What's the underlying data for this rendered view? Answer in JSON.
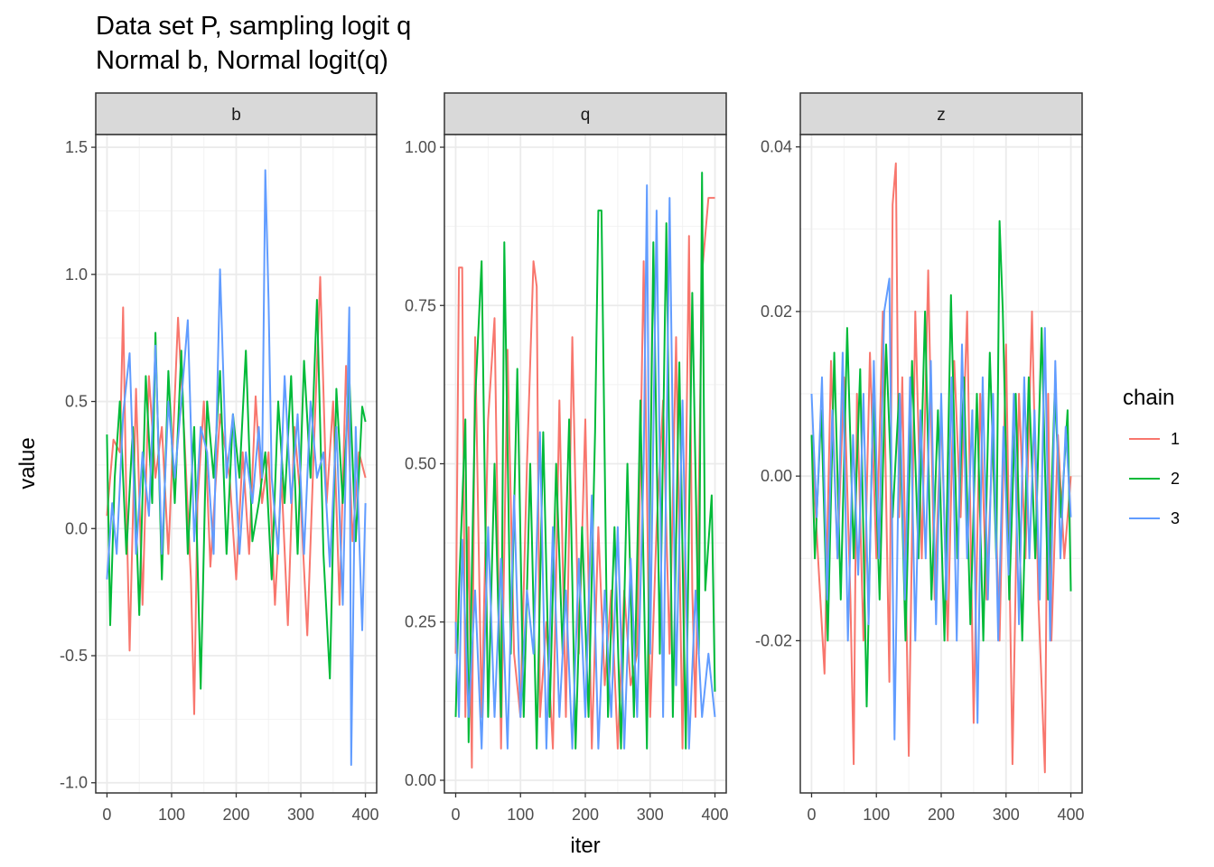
{
  "title": {
    "line1": "Data set P, sampling logit q",
    "line2": "Normal b, Normal logit(q)"
  },
  "chart_data": {
    "type": "line",
    "xlabel": "iter",
    "ylabel": "value",
    "xlim": [
      0,
      400
    ],
    "xticks": [
      0,
      100,
      200,
      300,
      400
    ],
    "grid": true,
    "legend": {
      "title": "chain",
      "placement": "right",
      "entries": [
        {
          "name": "1",
          "color": "#F8766D"
        },
        {
          "name": "2",
          "color": "#00BA38"
        },
        {
          "name": "3",
          "color": "#619CFF"
        }
      ]
    },
    "panels": [
      {
        "strip": "b",
        "ylim": [
          -1.04,
          1.55
        ],
        "yticks": [
          -1.0,
          -0.5,
          0.0,
          0.5,
          1.0,
          1.5
        ],
        "yticklabels": [
          "-1.0",
          "-0.5",
          "0.0",
          "0.5",
          "1.0",
          "1.5"
        ],
        "series": [
          {
            "name": "1",
            "x": [
              0,
              10,
              20,
              25,
              30,
              35,
              45,
              55,
              65,
              75,
              85,
              95,
              110,
              120,
              130,
              135,
              140,
              150,
              160,
              175,
              190,
              200,
              210,
              220,
              230,
              240,
              250,
              260,
              270,
              280,
              290,
              300,
              310,
              320,
              330,
              340,
              350,
              360,
              370,
              380,
              390,
              400
            ],
            "values": [
              0.05,
              0.35,
              0.3,
              0.87,
              0.1,
              -0.48,
              0.55,
              -0.3,
              0.6,
              0.2,
              0.4,
              -0.1,
              0.83,
              0.35,
              -0.2,
              -0.73,
              0.1,
              0.5,
              -0.15,
              0.45,
              0.2,
              -0.2,
              0.3,
              -0.1,
              0.52,
              0.1,
              0.3,
              -0.3,
              0.2,
              -0.38,
              0.4,
              0.1,
              -0.42,
              0.3,
              0.99,
              0.1,
              0.5,
              -0.3,
              0.64,
              -0.05,
              0.3,
              0.2
            ]
          },
          {
            "name": "2",
            "x": [
              0,
              5,
              12,
              20,
              30,
              40,
              50,
              60,
              70,
              75,
              85,
              95,
              105,
              115,
              125,
              135,
              145,
              155,
              165,
              175,
              185,
              195,
              205,
              215,
              225,
              235,
              245,
              255,
              265,
              275,
              285,
              295,
              305,
              315,
              325,
              335,
              345,
              355,
              365,
              375,
              385,
              395,
              400
            ],
            "values": [
              0.37,
              -0.38,
              0.2,
              0.5,
              -0.1,
              0.4,
              -0.34,
              0.6,
              0.1,
              0.77,
              -0.2,
              0.62,
              0.1,
              0.7,
              -0.1,
              0.4,
              -0.63,
              0.5,
              0.2,
              0.62,
              -0.1,
              0.45,
              0.2,
              0.7,
              -0.05,
              0.1,
              0.3,
              -0.2,
              0.5,
              0.1,
              0.6,
              -0.1,
              0.66,
              0.2,
              0.9,
              -0.1,
              -0.59,
              0.55,
              0.1,
              0.6,
              -0.05,
              0.48,
              0.42
            ]
          },
          {
            "name": "3",
            "x": [
              0,
              8,
              15,
              25,
              35,
              45,
              55,
              65,
              75,
              85,
              95,
              105,
              115,
              125,
              135,
              145,
              155,
              165,
              175,
              185,
              195,
              205,
              215,
              225,
              235,
              240,
              245,
              250,
              255,
              265,
              275,
              285,
              295,
              305,
              315,
              325,
              335,
              345,
              355,
              365,
              375,
              378,
              385,
              395,
              400
            ],
            "values": [
              -0.2,
              0.1,
              -0.1,
              0.45,
              0.69,
              -0.1,
              0.3,
              0.05,
              0.72,
              -0.1,
              0.5,
              0.2,
              0.5,
              0.82,
              -0.05,
              0.4,
              0.3,
              -0.1,
              1.02,
              0.2,
              0.45,
              -0.1,
              0.3,
              0.1,
              0.4,
              0.2,
              1.41,
              0.9,
              0.2,
              -0.1,
              0.6,
              0.1,
              0.45,
              -0.1,
              0.5,
              0.2,
              0.3,
              -0.15,
              0.4,
              -0.3,
              0.87,
              -0.93,
              0.4,
              -0.4,
              0.1
            ]
          }
        ]
      },
      {
        "strip": "q",
        "ylim": [
          -0.02,
          1.02
        ],
        "yticks": [
          0.0,
          0.25,
          0.5,
          0.75,
          1.0
        ],
        "yticklabels": [
          "0.00",
          "0.25",
          "0.50",
          "0.75",
          "1.00"
        ],
        "series": [
          {
            "name": "1",
            "x": [
              0,
              5,
              10,
              15,
              20,
              25,
              30,
              40,
              50,
              60,
              70,
              80,
              90,
              100,
              110,
              120,
              125,
              130,
              140,
              150,
              160,
              170,
              180,
              190,
              200,
              210,
              220,
              230,
              240,
              250,
              260,
              270,
              280,
              290,
              300,
              310,
              320,
              330,
              340,
              350,
              360,
              365,
              370,
              380,
              390,
              400
            ],
            "values": [
              0.2,
              0.81,
              0.81,
              0.1,
              0.4,
              0.02,
              0.7,
              0.1,
              0.57,
              0.73,
              0.05,
              0.68,
              0.2,
              0.1,
              0.5,
              0.82,
              0.78,
              0.1,
              0.25,
              0.05,
              0.6,
              0.1,
              0.7,
              0.2,
              0.57,
              0.05,
              0.4,
              0.15,
              0.3,
              0.05,
              0.3,
              0.15,
              0.2,
              0.82,
              0.1,
              0.4,
              0.6,
              0.2,
              0.7,
              0.05,
              0.86,
              0.3,
              0.1,
              0.8,
              0.92,
              0.92
            ]
          },
          {
            "name": "2",
            "x": [
              0,
              5,
              15,
              20,
              30,
              40,
              50,
              60,
              70,
              75,
              85,
              95,
              105,
              115,
              125,
              135,
              145,
              155,
              165,
              175,
              185,
              195,
              205,
              215,
              220,
              225,
              235,
              245,
              255,
              265,
              275,
              285,
              295,
              305,
              315,
              325,
              335,
              345,
              355,
              365,
              375,
              380,
              385,
              395,
              400
            ],
            "values": [
              0.1,
              0.3,
              0.57,
              0.06,
              0.6,
              0.82,
              0.1,
              0.5,
              0.1,
              0.85,
              0.2,
              0.65,
              0.1,
              0.5,
              0.05,
              0.55,
              0.1,
              0.5,
              0.2,
              0.57,
              0.05,
              0.4,
              0.1,
              0.55,
              0.9,
              0.9,
              0.1,
              0.4,
              0.05,
              0.5,
              0.1,
              0.6,
              0.05,
              0.85,
              0.2,
              0.88,
              0.1,
              0.66,
              0.05,
              0.77,
              0.2,
              0.96,
              0.3,
              0.45,
              0.14
            ]
          },
          {
            "name": "3",
            "x": [
              0,
              5,
              10,
              20,
              30,
              40,
              50,
              60,
              70,
              80,
              90,
              100,
              110,
              120,
              130,
              140,
              150,
              160,
              170,
              180,
              190,
              200,
              210,
              220,
              230,
              240,
              250,
              260,
              270,
              280,
              290,
              295,
              300,
              310,
              320,
              330,
              340,
              350,
              360,
              370,
              380,
              390,
              400
            ],
            "values": [
              0.25,
              0.1,
              0.38,
              0.1,
              0.3,
              0.05,
              0.4,
              0.1,
              0.35,
              0.05,
              0.45,
              0.1,
              0.3,
              0.2,
              0.55,
              0.05,
              0.4,
              0.1,
              0.3,
              0.05,
              0.35,
              0.1,
              0.45,
              0.05,
              0.3,
              0.1,
              0.4,
              0.05,
              0.35,
              0.1,
              0.5,
              0.94,
              0.2,
              0.9,
              0.1,
              0.92,
              0.15,
              0.6,
              0.05,
              0.3,
              0.1,
              0.2,
              0.1
            ]
          }
        ]
      },
      {
        "strip": "z",
        "ylim": [
          -0.0385,
          0.0415
        ],
        "yticks": [
          -0.02,
          0.0,
          0.02,
          0.04
        ],
        "yticklabels": [
          "-0.02",
          "0.00",
          "0.02",
          "0.04"
        ],
        "series": [
          {
            "name": "1",
            "x": [
              0,
              10,
              20,
              30,
              40,
              50,
              60,
              65,
              70,
              80,
              90,
              100,
              110,
              120,
              125,
              130,
              135,
              140,
              150,
              160,
              170,
              180,
              190,
              200,
              210,
              220,
              230,
              240,
              250,
              260,
              270,
              280,
              290,
              300,
              310,
              320,
              330,
              340,
              350,
              360,
              365,
              370,
              380,
              390,
              400
            ],
            "values": [
              0.005,
              -0.01,
              -0.024,
              0.014,
              -0.01,
              0.012,
              -0.015,
              -0.035,
              0.01,
              -0.02,
              0.015,
              -0.01,
              0.02,
              -0.025,
              0.033,
              0.038,
              -0.005,
              0.012,
              -0.034,
              0.02,
              -0.01,
              0.025,
              -0.015,
              0.008,
              -0.02,
              0.014,
              -0.005,
              0.02,
              -0.03,
              0.01,
              -0.015,
              0.006,
              -0.02,
              0.016,
              -0.035,
              0.01,
              -0.01,
              0.02,
              -0.015,
              -0.036,
              0.01,
              -0.02,
              0.005,
              -0.01,
              0.0
            ]
          },
          {
            "name": "2",
            "x": [
              0,
              5,
              15,
              25,
              35,
              45,
              55,
              65,
              75,
              85,
              95,
              105,
              115,
              125,
              135,
              145,
              155,
              165,
              175,
              185,
              195,
              205,
              215,
              225,
              235,
              245,
              255,
              265,
              275,
              285,
              290,
              295,
              305,
              315,
              325,
              335,
              345,
              355,
              365,
              375,
              385,
              395,
              400
            ],
            "values": [
              0.005,
              -0.01,
              0.008,
              -0.02,
              0.015,
              -0.015,
              0.018,
              -0.01,
              0.013,
              -0.028,
              0.01,
              -0.015,
              0.016,
              -0.005,
              0.01,
              -0.02,
              0.014,
              -0.01,
              0.02,
              -0.015,
              0.008,
              -0.02,
              0.022,
              -0.01,
              0.012,
              -0.018,
              0.01,
              -0.02,
              0.015,
              -0.01,
              0.031,
              0.02,
              -0.015,
              0.01,
              -0.02,
              0.012,
              -0.01,
              0.018,
              -0.015,
              0.01,
              -0.005,
              0.008,
              -0.014
            ]
          },
          {
            "name": "3",
            "x": [
              0,
              8,
              16,
              24,
              32,
              40,
              48,
              56,
              64,
              72,
              80,
              88,
              96,
              104,
              112,
              120,
              128,
              136,
              144,
              152,
              160,
              168,
              176,
              184,
              192,
              200,
              208,
              216,
              224,
              232,
              240,
              248,
              256,
              264,
              272,
              280,
              288,
              296,
              304,
              312,
              320,
              328,
              336,
              344,
              352,
              360,
              368,
              376,
              384,
              392,
              400
            ],
            "values": [
              0.01,
              -0.005,
              0.012,
              -0.015,
              0.008,
              -0.01,
              0.015,
              -0.02,
              0.005,
              -0.012,
              0.01,
              -0.018,
              0.014,
              -0.01,
              0.02,
              0.024,
              -0.032,
              0.01,
              -0.015,
              0.012,
              -0.02,
              0.008,
              -0.01,
              0.014,
              -0.018,
              0.01,
              -0.015,
              0.012,
              -0.02,
              0.016,
              -0.01,
              0.008,
              -0.03,
              0.012,
              -0.015,
              0.01,
              -0.02,
              0.006,
              -0.012,
              0.01,
              -0.018,
              0.012,
              -0.01,
              0.008,
              -0.015,
              0.018,
              -0.02,
              0.014,
              -0.01,
              0.006,
              -0.005
            ]
          }
        ]
      }
    ]
  }
}
